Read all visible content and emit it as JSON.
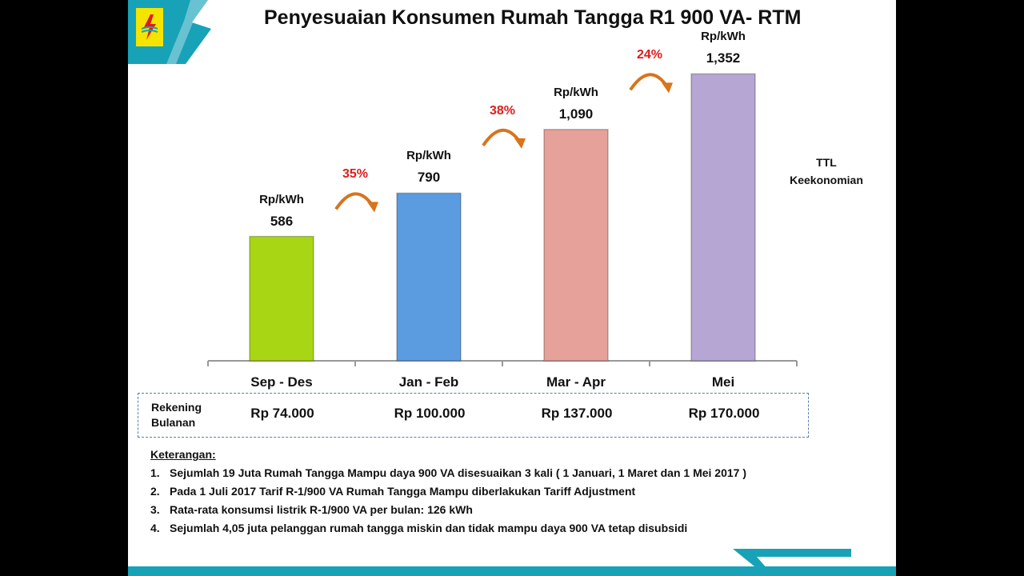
{
  "title": "Penyesuaian Konsumen Rumah Tangga R1 900 VA- RTM",
  "chart_data": {
    "type": "bar",
    "categories": [
      "Sep - Des",
      "Jan - Feb",
      "Mar - Apr",
      "Mei"
    ],
    "values": [
      586,
      790,
      1090,
      1352
    ],
    "value_labels": [
      "586",
      "790",
      "1,090",
      "1,352"
    ],
    "unit_label": "Rp/kWh",
    "bar_colors": [
      "#a8d615",
      "#5b9be0",
      "#e6a19b",
      "#b5a6d4"
    ],
    "increase_labels": [
      "35%",
      "38%",
      "24%"
    ],
    "side_label": [
      "TTL",
      "Keekonomian"
    ],
    "ylim": [
      0,
      1700
    ],
    "grid": false
  },
  "bill": {
    "label": [
      "Rekening",
      "Bulanan"
    ],
    "values": [
      "Rp 74.000",
      "Rp 100.000",
      "Rp 137.000",
      "Rp 170.000"
    ]
  },
  "notes": {
    "title": "Keterangan:",
    "items": [
      {
        "num": "1.",
        "text": "Sejumlah 19 Juta  Rumah Tangga Mampu daya 900 VA disesuaikan 3 kali ( 1 Januari, 1 Maret dan 1 Mei 2017 )"
      },
      {
        "num": "2.",
        "text": "Pada 1 Juli 2017 Tarif R-1/900 VA Rumah Tangga Mampu diberlakukan Tariff Adjustment"
      },
      {
        "num": "3.",
        "text": "Rata-rata konsumsi listrik R-1/900 VA per bulan: 126 kWh"
      },
      {
        "num": "4.",
        "text": "Sejumlah 4,05 juta pelanggan rumah tangga miskin dan tidak mampu daya 900 VA tetap disubsidi"
      }
    ]
  },
  "colors": {
    "accent_teal": "#17a2b8",
    "logo_yellow": "#f5e400",
    "increase_red": "#e01b1b",
    "arrow_orange": "#d9731c"
  }
}
